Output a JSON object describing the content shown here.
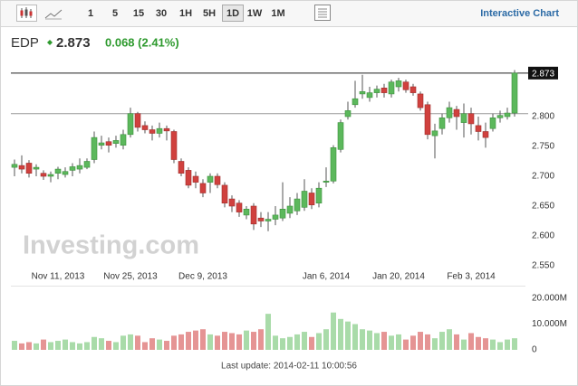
{
  "toolbar": {
    "intervals": [
      "1",
      "5",
      "15",
      "30",
      "1H",
      "5H",
      "1D",
      "1W",
      "1M"
    ],
    "selected_interval": "1D",
    "link": "Interactive Chart"
  },
  "header": {
    "symbol": "EDP",
    "price": "2.873",
    "change": "0.068 (2.41%)"
  },
  "watermark": "Investing.com",
  "footer": "Last update: 2014-02-11 10:00:56",
  "chart_data": {
    "type": "candlestick",
    "categories": [
      null,
      null,
      null,
      null,
      null,
      null,
      "Nov 11, 2013",
      null,
      null,
      null,
      null,
      null,
      null,
      null,
      null,
      null,
      "Nov 25, 2013",
      null,
      null,
      null,
      null,
      null,
      null,
      null,
      null,
      null,
      "Dec 9, 2013",
      null,
      null,
      null,
      null,
      null,
      null,
      null,
      null,
      null,
      null,
      null,
      null,
      null,
      null,
      null,
      null,
      "Jan 6, 2014",
      null,
      null,
      null,
      null,
      null,
      null,
      null,
      null,
      null,
      "Jan 20, 2014",
      null,
      null,
      null,
      null,
      null,
      null,
      null,
      null,
      null,
      "Feb 3, 2014",
      null,
      null,
      null,
      null,
      null,
      null
    ],
    "open": [
      2.715,
      2.718,
      2.722,
      2.712,
      2.705,
      2.7,
      2.705,
      2.703,
      2.71,
      2.712,
      2.715,
      2.728,
      2.752,
      2.758,
      2.755,
      2.752,
      2.77,
      2.805,
      2.785,
      2.778,
      2.772,
      2.78,
      2.775,
      2.725,
      2.71,
      2.7,
      2.688,
      2.69,
      2.7,
      2.685,
      2.662,
      2.655,
      2.635,
      2.65,
      2.63,
      2.625,
      2.628,
      2.63,
      2.638,
      2.642,
      2.648,
      2.672,
      2.655,
      2.69,
      2.692,
      2.745,
      2.8,
      2.82,
      2.838,
      2.832,
      2.84,
      2.848,
      2.838,
      2.85,
      2.858,
      2.85,
      2.838,
      2.82,
      2.768,
      2.78,
      2.798,
      2.812,
      2.79,
      2.805,
      2.785,
      2.775,
      2.78,
      2.798,
      2.8,
      2.806
    ],
    "high": [
      2.728,
      2.735,
      2.727,
      2.72,
      2.71,
      2.708,
      2.716,
      2.715,
      2.722,
      2.73,
      2.73,
      2.775,
      2.768,
      2.765,
      2.768,
      2.778,
      2.815,
      2.808,
      2.792,
      2.785,
      2.79,
      2.785,
      2.778,
      2.73,
      2.715,
      2.708,
      2.695,
      2.705,
      2.705,
      2.69,
      2.668,
      2.66,
      2.65,
      2.655,
      2.64,
      2.64,
      2.65,
      2.69,
      2.665,
      2.672,
      2.695,
      2.68,
      2.69,
      2.715,
      2.752,
      2.795,
      2.825,
      2.86,
      2.87,
      2.85,
      2.852,
      2.855,
      2.862,
      2.865,
      2.862,
      2.855,
      2.842,
      2.825,
      2.788,
      2.805,
      2.825,
      2.818,
      2.822,
      2.815,
      2.8,
      2.79,
      2.805,
      2.81,
      2.815,
      2.878
    ],
    "low": [
      2.7,
      2.705,
      2.698,
      2.7,
      2.694,
      2.69,
      2.695,
      2.698,
      2.7,
      2.705,
      2.712,
      2.722,
      2.745,
      2.74,
      2.748,
      2.745,
      2.765,
      2.775,
      2.772,
      2.76,
      2.765,
      2.76,
      2.722,
      2.7,
      2.68,
      2.68,
      2.665,
      2.672,
      2.68,
      2.648,
      2.64,
      2.632,
      2.628,
      2.61,
      2.615,
      2.608,
      2.618,
      2.625,
      2.63,
      2.635,
      2.642,
      2.645,
      2.648,
      2.682,
      2.688,
      2.74,
      2.795,
      2.815,
      2.83,
      2.825,
      2.832,
      2.832,
      2.832,
      2.842,
      2.84,
      2.835,
      2.81,
      2.762,
      2.73,
      2.77,
      2.79,
      2.778,
      2.765,
      2.77,
      2.76,
      2.748,
      2.775,
      2.79,
      2.795,
      2.8
    ],
    "close": [
      2.72,
      2.712,
      2.705,
      2.715,
      2.7,
      2.703,
      2.712,
      2.708,
      2.716,
      2.718,
      2.725,
      2.765,
      2.756,
      2.752,
      2.76,
      2.77,
      2.805,
      2.782,
      2.778,
      2.772,
      2.78,
      2.776,
      2.728,
      2.705,
      2.685,
      2.69,
      2.672,
      2.7,
      2.686,
      2.655,
      2.65,
      2.64,
      2.645,
      2.62,
      2.625,
      2.628,
      2.635,
      2.645,
      2.65,
      2.662,
      2.675,
      2.652,
      2.68,
      2.692,
      2.748,
      2.79,
      2.81,
      2.83,
      2.842,
      2.84,
      2.846,
      2.84,
      2.858,
      2.86,
      2.845,
      2.84,
      2.815,
      2.77,
      2.776,
      2.798,
      2.815,
      2.8,
      2.805,
      2.788,
      2.775,
      2.765,
      2.798,
      2.802,
      2.806,
      2.873
    ],
    "volume": [
      3.5,
      2.5,
      3,
      2.5,
      4,
      3,
      3.5,
      4,
      3,
      2.5,
      3,
      5,
      4.5,
      3.5,
      3,
      5.5,
      6,
      5.5,
      3,
      4.5,
      4,
      3.5,
      5.5,
      6,
      7,
      7.5,
      8,
      6,
      5.5,
      7,
      6.5,
      6,
      7.5,
      7,
      8,
      14,
      5.5,
      4.5,
      5,
      6,
      7,
      5,
      6.5,
      8,
      14.5,
      12,
      11,
      10,
      8,
      7.5,
      6.5,
      7,
      5.5,
      6,
      4,
      5.5,
      7,
      6,
      4.5,
      7,
      8,
      6,
      4,
      6.5,
      5,
      4.5,
      4,
      3,
      4,
      4.5
    ],
    "up_color": "#5cb85c",
    "down_color": "#d0413e",
    "volume_up_color": "#a9dba9",
    "volume_down_color": "#e59494",
    "ylim": [
      2.54,
      2.89
    ],
    "yticks": [
      {
        "value": 2.55,
        "label": "2.550"
      },
      {
        "value": 2.6,
        "label": "2.600"
      },
      {
        "value": 2.65,
        "label": "2.650"
      },
      {
        "value": 2.7,
        "label": "2.700"
      },
      {
        "value": 2.75,
        "label": "2.750"
      },
      {
        "value": 2.8,
        "label": "2.800"
      }
    ],
    "last_price": {
      "value": 2.873,
      "label": "2.873"
    },
    "previous_close": 2.805,
    "y2lim": [
      0,
      23
    ],
    "y2ticks": [
      0,
      {
        "value": 10,
        "label": "10.000M"
      },
      {
        "value": 20,
        "label": "20.000M"
      }
    ],
    "grid": false
  }
}
